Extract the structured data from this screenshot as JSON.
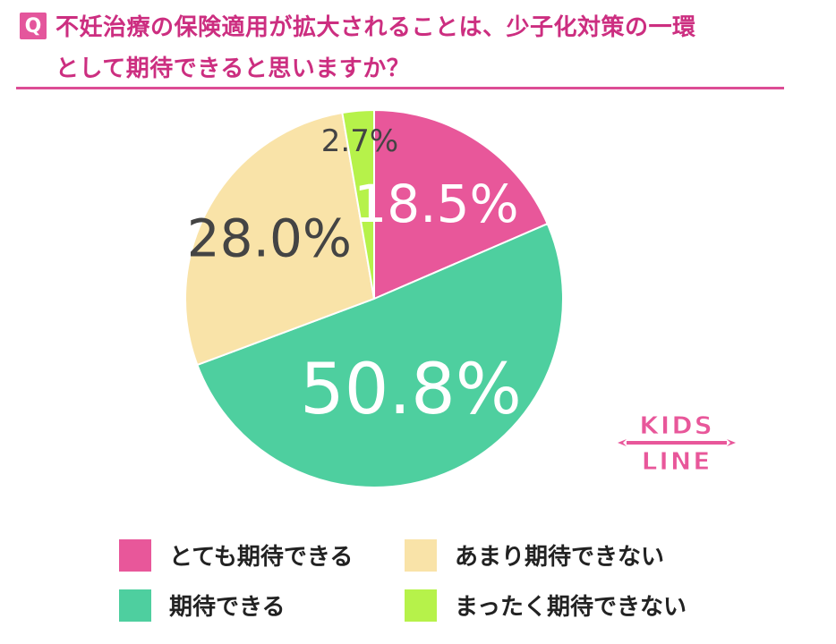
{
  "question": {
    "badge": "Q",
    "line1": "不妊治療の保険適用が拡大されることは、少子化対策の一環",
    "line2": "として期待できると思いますか？"
  },
  "colors": {
    "accent": "#e4569c",
    "title": "#cc2e80",
    "slice_1": "#e8579a",
    "slice_2": "#4ecf9f",
    "slice_3": "#f9e3a8",
    "slice_4": "#b6f24a"
  },
  "chart_data": {
    "type": "pie",
    "title": "不妊治療の保険適用が拡大されることは、少子化対策の一環として期待できると思いますか？",
    "categories": [
      "とても期待できる",
      "期待できる",
      "あまり期待できない",
      "まったく期待できない"
    ],
    "values": [
      18.5,
      50.8,
      28.0,
      2.7
    ],
    "labels": [
      "18.5%",
      "50.8%",
      "28.0%",
      "2.7%"
    ],
    "colors": [
      "#e8579a",
      "#4ecf9f",
      "#f9e3a8",
      "#b6f24a"
    ],
    "start": "12 o'clock",
    "direction": "clockwise",
    "legend_position": "bottom"
  },
  "legend": [
    {
      "label": "とても期待できる",
      "color": "#e8579a"
    },
    {
      "label": "あまり期待できない",
      "color": "#f9e3a8"
    },
    {
      "label": "期待できる",
      "color": "#4ecf9f"
    },
    {
      "label": "まったく期待できない",
      "color": "#b6f24a"
    }
  ],
  "logo": {
    "line1": "KIDS",
    "line2": "LINE",
    "color": "#e8579a"
  }
}
